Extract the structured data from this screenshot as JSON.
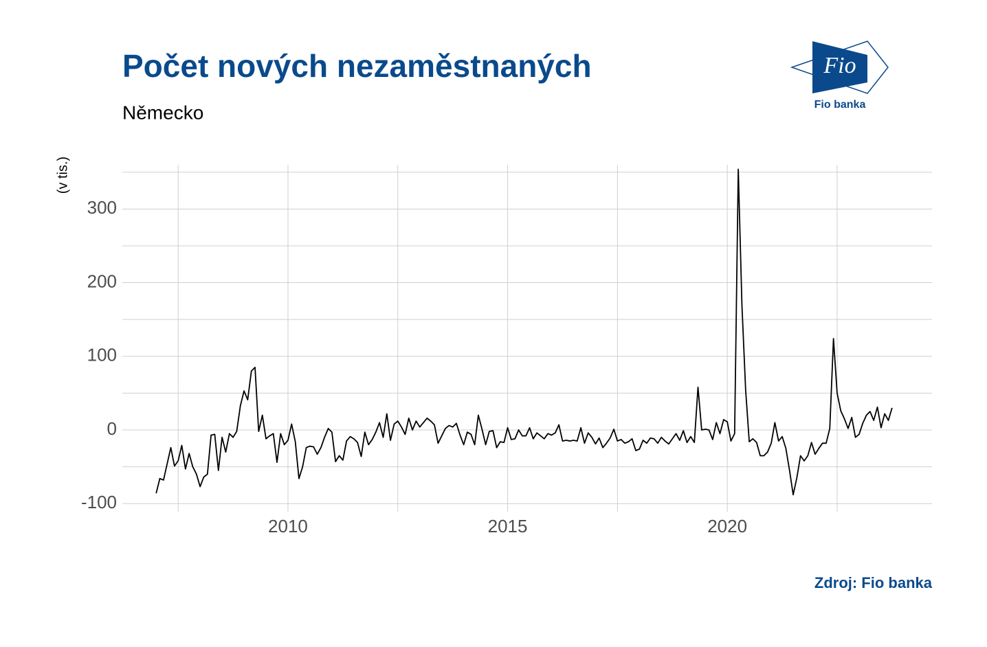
{
  "chart_data": {
    "type": "line",
    "title": "Počet nových nezaměstnaných",
    "subtitle": "Německo",
    "y_label": "(v tis.)",
    "source": "Zdroj: Fio banka",
    "color": "#000000",
    "x": [
      2007,
      2007.083,
      2007.167,
      2007.25,
      2007.333,
      2007.417,
      2007.5,
      2007.583,
      2007.667,
      2007.75,
      2007.833,
      2007.917,
      2008,
      2008.083,
      2008.167,
      2008.25,
      2008.333,
      2008.417,
      2008.5,
      2008.583,
      2008.667,
      2008.75,
      2008.833,
      2008.917,
      2009,
      2009.083,
      2009.167,
      2009.25,
      2009.333,
      2009.417,
      2009.5,
      2009.583,
      2009.667,
      2009.75,
      2009.833,
      2009.917,
      2010,
      2010.083,
      2010.167,
      2010.25,
      2010.333,
      2010.417,
      2010.5,
      2010.583,
      2010.667,
      2010.75,
      2010.833,
      2010.917,
      2011,
      2011.083,
      2011.167,
      2011.25,
      2011.333,
      2011.417,
      2011.5,
      2011.583,
      2011.667,
      2011.75,
      2011.833,
      2011.917,
      2012,
      2012.083,
      2012.167,
      2012.25,
      2012.333,
      2012.417,
      2012.5,
      2012.583,
      2012.667,
      2012.75,
      2012.833,
      2012.917,
      2013,
      2013.083,
      2013.167,
      2013.25,
      2013.333,
      2013.417,
      2013.5,
      2013.583,
      2013.667,
      2013.75,
      2013.833,
      2013.917,
      2014,
      2014.083,
      2014.167,
      2014.25,
      2014.333,
      2014.417,
      2014.5,
      2014.583,
      2014.667,
      2014.75,
      2014.833,
      2014.917,
      2015,
      2015.083,
      2015.167,
      2015.25,
      2015.333,
      2015.417,
      2015.5,
      2015.583,
      2015.667,
      2015.75,
      2015.833,
      2015.917,
      2016,
      2016.083,
      2016.167,
      2016.25,
      2016.333,
      2016.417,
      2016.5,
      2016.583,
      2016.667,
      2016.75,
      2016.833,
      2016.917,
      2017,
      2017.083,
      2017.167,
      2017.25,
      2017.333,
      2017.417,
      2017.5,
      2017.583,
      2017.667,
      2017.75,
      2017.833,
      2017.917,
      2018,
      2018.083,
      2018.167,
      2018.25,
      2018.333,
      2018.417,
      2018.5,
      2018.583,
      2018.667,
      2018.75,
      2018.833,
      2018.917,
      2019,
      2019.083,
      2019.167,
      2019.25,
      2019.333,
      2019.417,
      2019.5,
      2019.583,
      2019.667,
      2019.75,
      2019.833,
      2019.917,
      2020,
      2020.083,
      2020.167,
      2020.25,
      2020.333,
      2020.417,
      2020.5,
      2020.583,
      2020.667,
      2020.75,
      2020.833,
      2020.917,
      2021,
      2021.083,
      2021.167,
      2021.25,
      2021.333,
      2021.417,
      2021.5,
      2021.583,
      2021.667,
      2021.75,
      2021.833,
      2021.917,
      2022,
      2022.083,
      2022.167,
      2022.25,
      2022.333,
      2022.417,
      2022.5,
      2022.583,
      2022.667,
      2022.75,
      2022.833,
      2022.917,
      2023,
      2023.083,
      2023.167,
      2023.25,
      2023.333,
      2023.417,
      2023.5,
      2023.583,
      2023.667,
      2023.75
    ],
    "values": [
      -86,
      -66,
      -68,
      -46,
      -24,
      -49,
      -42,
      -21,
      -53,
      -32,
      -50,
      -60,
      -77,
      -64,
      -60,
      -7,
      -6,
      -55,
      -10,
      -30,
      -5,
      -10,
      -2,
      33,
      53,
      41,
      80,
      85,
      -2,
      20,
      -12,
      -8,
      -5,
      -44,
      -5,
      -20,
      -14,
      8,
      -16,
      -66,
      -50,
      -24,
      -22,
      -23,
      -33,
      -24,
      -10,
      2,
      -3,
      -43,
      -35,
      -41,
      -15,
      -9,
      -12,
      -17,
      -36,
      -3,
      -20,
      -13,
      -3,
      10,
      -10,
      22,
      -14,
      8,
      12,
      4,
      -6,
      16,
      0,
      12,
      4,
      10,
      16,
      12,
      7,
      -18,
      -8,
      2,
      6,
      4,
      9,
      -7,
      -20,
      -3,
      -6,
      -20,
      20,
      1,
      -20,
      -2,
      -1,
      -24,
      -16,
      -17,
      3,
      -13,
      -12,
      0,
      -8,
      -8,
      3,
      -12,
      -4,
      -8,
      -12,
      -5,
      -7,
      -4,
      7,
      -15,
      -14,
      -15,
      -14,
      -15,
      3,
      -18,
      -4,
      -10,
      -19,
      -11,
      -24,
      -18,
      -11,
      1,
      -15,
      -13,
      -18,
      -16,
      -12,
      -28,
      -26,
      -14,
      -18,
      -11,
      -12,
      -18,
      -10,
      -15,
      -19,
      -12,
      -5,
      -14,
      -1,
      -17,
      -9,
      -17,
      58,
      0,
      1,
      0,
      -13,
      10,
      -5,
      14,
      11,
      -15,
      -5,
      354,
      170,
      55,
      -16,
      -12,
      -17,
      -35,
      -35,
      -30,
      -18,
      10,
      -15,
      -9,
      -25,
      -55,
      -88,
      -65,
      -35,
      -42,
      -35,
      -17,
      -33,
      -25,
      -18,
      -18,
      2,
      124,
      50,
      26,
      15,
      2,
      17,
      -10,
      -6,
      9,
      20,
      25,
      13,
      31,
      3,
      22,
      13,
      30
    ],
    "xlim": [
      2006.23,
      2024.66
    ],
    "xticks": [
      2010,
      2015,
      2020
    ],
    "x_minor_ticks": [
      2007.5,
      2012.5,
      2017.5,
      2022.5
    ],
    "ylim": [
      -111,
      360
    ],
    "yticks": [
      -100,
      0,
      100,
      200,
      300
    ],
    "y_minor_ticks": [
      -50,
      50,
      150,
      250,
      350
    ],
    "grid": true
  },
  "logo": {
    "mark": "Fio",
    "name": "Fio banka"
  }
}
